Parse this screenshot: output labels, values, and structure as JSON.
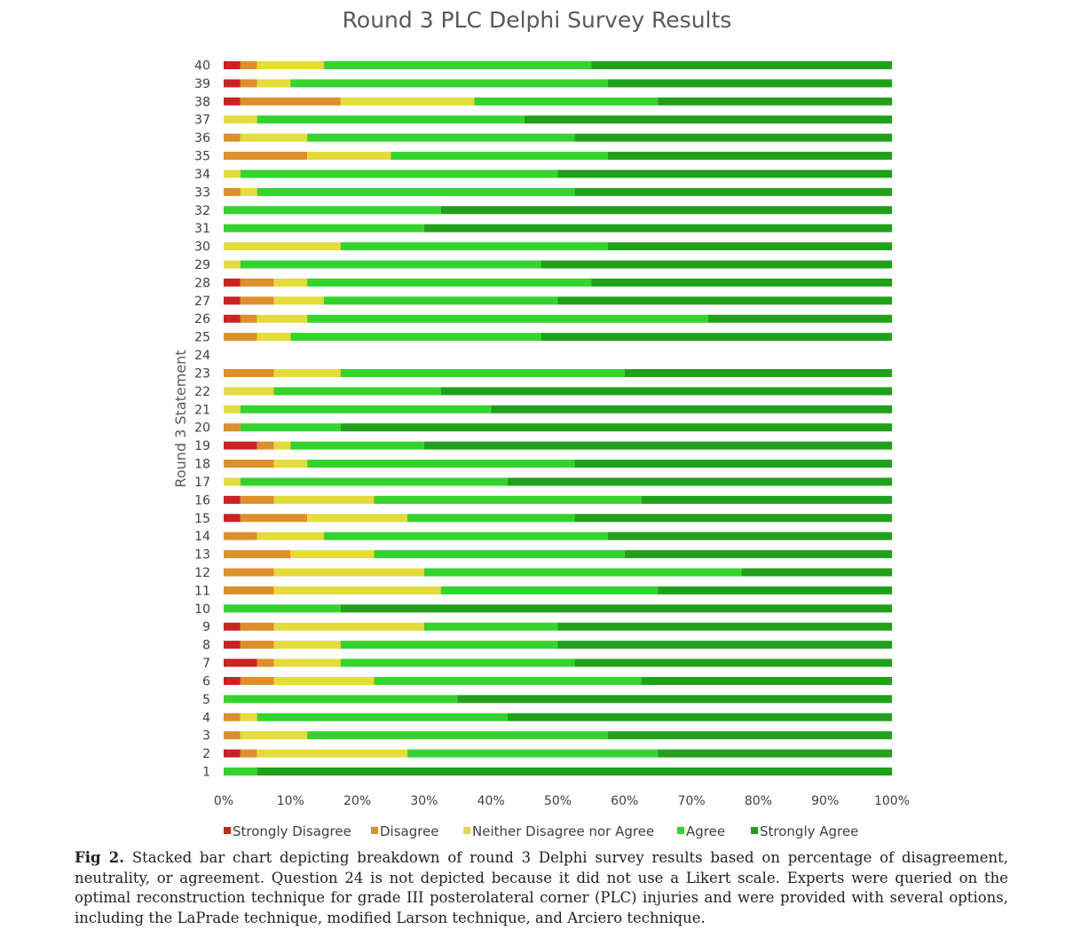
{
  "chart_data": {
    "type": "bar",
    "orientation": "horizontal",
    "stacked": true,
    "title": "Round 3 PLC Delphi Survey Results",
    "ylabel": "Round 3 Statement",
    "xlabel": "",
    "x_ticks": [
      "0%",
      "10%",
      "20%",
      "30%",
      "40%",
      "50%",
      "60%",
      "70%",
      "80%",
      "90%",
      "100%"
    ],
    "xlim": [
      0,
      100
    ],
    "legend_position": "bottom",
    "grid": false,
    "categories": [
      "1",
      "2",
      "3",
      "4",
      "5",
      "6",
      "7",
      "8",
      "9",
      "10",
      "11",
      "12",
      "13",
      "14",
      "15",
      "16",
      "17",
      "18",
      "19",
      "20",
      "21",
      "22",
      "23",
      "24",
      "25",
      "26",
      "27",
      "28",
      "29",
      "30",
      "31",
      "32",
      "33",
      "34",
      "35",
      "36",
      "37",
      "38",
      "39",
      "40"
    ],
    "series": [
      {
        "name": "Strongly Disagree",
        "color": "#cc2222",
        "values": [
          0,
          2.5,
          0,
          0,
          0,
          2.5,
          5,
          2.5,
          2.5,
          0,
          0,
          0,
          0,
          0,
          2.5,
          2.5,
          0,
          0,
          5,
          0,
          0,
          0,
          0,
          0,
          0,
          2.5,
          2.5,
          2.5,
          0,
          0,
          0,
          0,
          0,
          0,
          0,
          0,
          0,
          2.5,
          2.5,
          2.5
        ]
      },
      {
        "name": "Disagree",
        "color": "#dd8f2a",
        "values": [
          0,
          2.5,
          2.5,
          2.5,
          0,
          5,
          2.5,
          5,
          5,
          0,
          7.5,
          7.5,
          10,
          5,
          10,
          5,
          0,
          7.5,
          2.5,
          2.5,
          0,
          0,
          7.5,
          0,
          5,
          2.5,
          5,
          5,
          0,
          0,
          0,
          0,
          2.5,
          0,
          12.5,
          2.5,
          0,
          15,
          2.5,
          2.5
        ]
      },
      {
        "name": "Neither Disagree nor Agree",
        "color": "#e3dc3b",
        "values": [
          0,
          22.5,
          10,
          2.5,
          0,
          15,
          10,
          10,
          22.5,
          0,
          25,
          22.5,
          12.5,
          10,
          15,
          15,
          2.5,
          5,
          2.5,
          0,
          2.5,
          7.5,
          10,
          0,
          5,
          7.5,
          7.5,
          5,
          2.5,
          17.5,
          0,
          0,
          2.5,
          2.5,
          12.5,
          10,
          5,
          20,
          5,
          10
        ]
      },
      {
        "name": "Agree",
        "color": "#33d42e",
        "values": [
          5,
          37.5,
          45,
          37.5,
          35,
          40,
          35,
          32.5,
          20,
          17.5,
          32.5,
          47.5,
          37.5,
          42.5,
          25,
          40,
          40,
          40,
          20,
          15,
          37.5,
          25,
          42.5,
          0,
          37.5,
          60,
          35,
          42.5,
          45,
          40,
          30,
          32.5,
          47.5,
          47.5,
          32.5,
          40,
          40,
          27.5,
          47.5,
          40
        ]
      },
      {
        "name": "Strongly Agree",
        "color": "#20a01b",
        "values": [
          95,
          35,
          42.5,
          57.5,
          65,
          37.5,
          47.5,
          50,
          50,
          82.5,
          35,
          22.5,
          40,
          42.5,
          47.5,
          37.5,
          57.5,
          47.5,
          70,
          82.5,
          60,
          67.5,
          40,
          0,
          52.5,
          27.5,
          50,
          45,
          52.5,
          42.5,
          70,
          67.5,
          47.5,
          50,
          42.5,
          47.5,
          55,
          35,
          42.5,
          45
        ]
      }
    ],
    "caption_label": "Fig 2.",
    "caption_text": "Stacked bar chart depicting breakdown of round 3 Delphi survey results based on percentage of disagreement, neutrality, or agreement. Question 24 is not depicted because it did not use a Likert scale. Experts were queried on the optimal reconstruction technique for grade III posterolateral corner (PLC) injuries and were provided with several options, including the LaPrade technique, modified Larson technique, and Arciero technique."
  }
}
